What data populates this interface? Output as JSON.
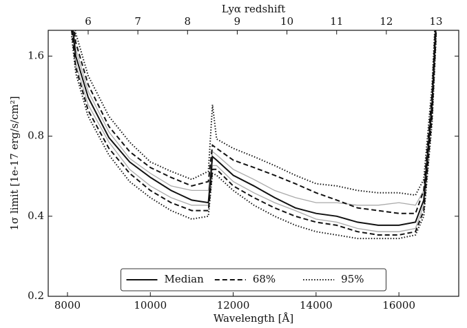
{
  "chart_data": {
    "type": "line",
    "xlabel": "Wavelength [Å]",
    "ylabel": "1σ limit [1e-17 erg/s/cm²]",
    "x2label": "Lyα redshift",
    "x": [
      8100,
      8200,
      8500,
      9000,
      9500,
      10000,
      10500,
      11000,
      11400,
      11500,
      11600,
      12000,
      12500,
      13000,
      13500,
      14000,
      14500,
      15000,
      15500,
      16000,
      16400,
      16600,
      16800,
      16900
    ],
    "series": [
      {
        "name": "Median",
        "color": "#111111",
        "style": "solid",
        "values": [
          2.2,
          1.6,
          1.12,
          0.79,
          0.64,
          0.56,
          0.5,
          0.46,
          0.45,
          0.67,
          0.65,
          0.57,
          0.52,
          0.47,
          0.43,
          0.41,
          0.4,
          0.38,
          0.37,
          0.37,
          0.38,
          0.46,
          1.06,
          2.2
        ]
      },
      {
        "name": "68%",
        "color": "#111111",
        "style": "dashed",
        "upper": [
          2.4,
          1.8,
          1.25,
          0.87,
          0.7,
          0.61,
          0.56,
          0.52,
          0.54,
          0.74,
          0.72,
          0.65,
          0.61,
          0.57,
          0.53,
          0.49,
          0.46,
          0.43,
          0.42,
          0.41,
          0.41,
          0.5,
          1.15,
          2.4
        ],
        "lower": [
          2.0,
          1.45,
          1.0,
          0.72,
          0.58,
          0.5,
          0.45,
          0.42,
          0.42,
          0.6,
          0.6,
          0.52,
          0.47,
          0.43,
          0.4,
          0.38,
          0.37,
          0.35,
          0.34,
          0.34,
          0.35,
          0.42,
          0.95,
          2.0
        ]
      },
      {
        "name": "95%",
        "color": "#111111",
        "style": "dotted",
        "upper": [
          2.6,
          1.95,
          1.35,
          0.95,
          0.76,
          0.64,
          0.59,
          0.55,
          0.59,
          1.05,
          0.78,
          0.72,
          0.67,
          0.62,
          0.57,
          0.53,
          0.52,
          0.5,
          0.49,
          0.49,
          0.48,
          0.55,
          1.25,
          2.6
        ],
        "lower": [
          1.9,
          1.38,
          0.95,
          0.68,
          0.54,
          0.47,
          0.42,
          0.39,
          0.4,
          0.58,
          0.57,
          0.5,
          0.44,
          0.4,
          0.37,
          0.35,
          0.34,
          0.33,
          0.33,
          0.33,
          0.34,
          0.4,
          0.9,
          1.9
        ]
      }
    ],
    "individual": {
      "color": "#aaaaaa",
      "lines": [
        [
          2.3,
          1.7,
          1.18,
          0.83,
          0.66,
          0.58,
          0.52,
          0.5,
          0.5,
          0.7,
          0.68,
          0.6,
          0.55,
          0.5,
          0.47,
          0.45,
          0.45,
          0.44,
          0.44,
          0.45,
          0.44,
          0.5,
          1.1,
          2.3
        ],
        [
          2.1,
          1.5,
          1.05,
          0.76,
          0.6,
          0.52,
          0.47,
          0.44,
          0.44,
          0.62,
          0.62,
          0.54,
          0.49,
          0.45,
          0.42,
          0.39,
          0.38,
          0.36,
          0.35,
          0.35,
          0.36,
          0.44,
          1.0,
          2.1
        ]
      ]
    },
    "xlim": [
      7535,
      17444
    ],
    "xticks": [
      8000,
      10000,
      12000,
      14000,
      16000
    ],
    "x2lim": [
      5.196,
      13.457
    ],
    "x2ticks": [
      6,
      7,
      8,
      9,
      10,
      11,
      12,
      13
    ],
    "ylim": [
      0.2,
      2.0
    ],
    "yticks": [
      0.2,
      0.4,
      0.8,
      1.6
    ],
    "ylog": true,
    "grid": false,
    "legend": "lower center"
  }
}
